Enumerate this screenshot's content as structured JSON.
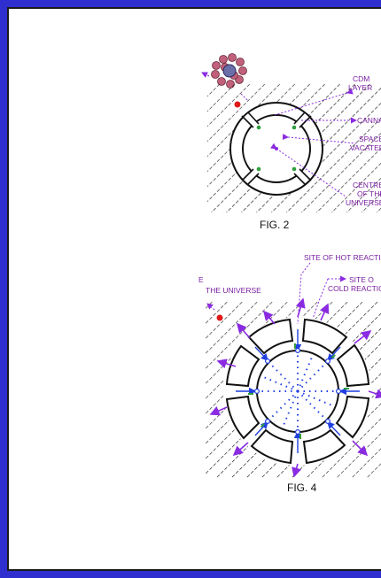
{
  "figures": [
    {
      "caption": "FIG. 2",
      "labels": {
        "cdm_layer": [
          "CDM",
          "LAYER"
        ],
        "cannabis": "CANNABI",
        "space_vacated": [
          "SPACE",
          "VACATED"
        ],
        "centre": [
          "CENTRE",
          "OF THE",
          "UNIVERSE"
        ]
      }
    },
    {
      "caption": "FIG. 4",
      "labels": {
        "hot_reaction": "SITE OF HOT REACTION",
        "cold_reaction": [
          "SITE O",
          "COLD REACTION"
        ],
        "the_universe": "THE UNIVERSE"
      }
    }
  ],
  "colors": {
    "border": "#2f2fcf",
    "label": "#7a1fa2",
    "arrow_purple": "#8a2be2",
    "arrow_blue": "#1f3fe0",
    "accent_green": "#2e9e3e",
    "particle_fill": "#c0607a",
    "red_dot": "#e01818"
  }
}
